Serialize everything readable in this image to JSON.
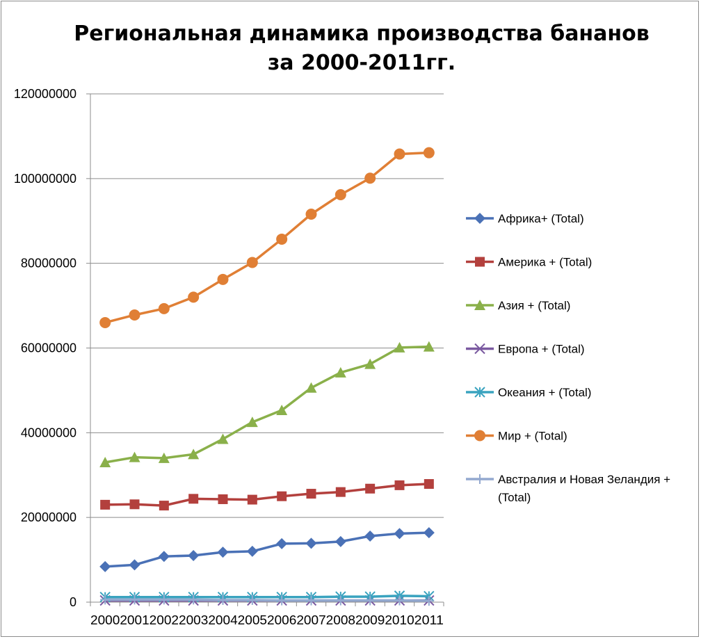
{
  "chart_data": {
    "type": "line",
    "title_lines": [
      "Региональная динамика производства бананов",
      "за 2000-2011гг."
    ],
    "xlabel": "",
    "ylabel": "",
    "ylim": [
      0,
      120000000
    ],
    "yticks": [
      "0",
      "20000000",
      "40000000",
      "60000000",
      "80000000",
      "100000000",
      "120000000"
    ],
    "ytick_values": [
      0,
      20000000,
      40000000,
      60000000,
      80000000,
      100000000,
      120000000
    ],
    "x": [
      "2000",
      "2001",
      "2002",
      "2003",
      "2004",
      "2005",
      "2006",
      "2007",
      "2008",
      "2009",
      "2010",
      "2011"
    ],
    "grid": "horizontal",
    "legend_placement": "right",
    "series": [
      {
        "name": "Африка+ (Total)",
        "color": "#4a71b6",
        "marker": "diamond",
        "values": [
          8400000,
          8800000,
          10800000,
          11000000,
          11800000,
          12000000,
          13800000,
          13900000,
          14300000,
          15600000,
          16200000,
          16400000
        ]
      },
      {
        "name": "Америка + (Total)",
        "color": "#b3403d",
        "marker": "square",
        "values": [
          23000000,
          23100000,
          22800000,
          24400000,
          24300000,
          24200000,
          25000000,
          25600000,
          26000000,
          26800000,
          27600000,
          27900000
        ]
      },
      {
        "name": "Азия + (Total)",
        "color": "#8ab04a",
        "marker": "triangle",
        "values": [
          33000000,
          34200000,
          34000000,
          34900000,
          38500000,
          42500000,
          45300000,
          50600000,
          54200000,
          56200000,
          60100000,
          60300000
        ]
      },
      {
        "name": "Европа + (Total)",
        "color": "#7a59a0",
        "marker": "x",
        "values": [
          400000,
          400000,
          400000,
          400000,
          400000,
          400000,
          400000,
          400000,
          400000,
          400000,
          400000,
          400000
        ]
      },
      {
        "name": "Океания + (Total)",
        "color": "#3aa3bf",
        "marker": "star",
        "values": [
          1200000,
          1200000,
          1200000,
          1200000,
          1200000,
          1200000,
          1200000,
          1200000,
          1300000,
          1300000,
          1500000,
          1400000
        ]
      },
      {
        "name": "Мир + (Total)",
        "color": "#e07f35",
        "marker": "circle",
        "values": [
          66000000,
          67800000,
          69300000,
          72000000,
          76200000,
          80200000,
          85700000,
          91600000,
          96200000,
          100100000,
          105800000,
          106100000
        ]
      },
      {
        "name_lines": [
          "Австралия и Новая Зеландия +",
          "(Total)"
        ],
        "color": "#93a9cf",
        "marker": "plus",
        "values": [
          600000,
          600000,
          600000,
          600000,
          500000,
          500000,
          400000,
          400000,
          400000,
          400000,
          400000,
          300000
        ]
      }
    ]
  }
}
